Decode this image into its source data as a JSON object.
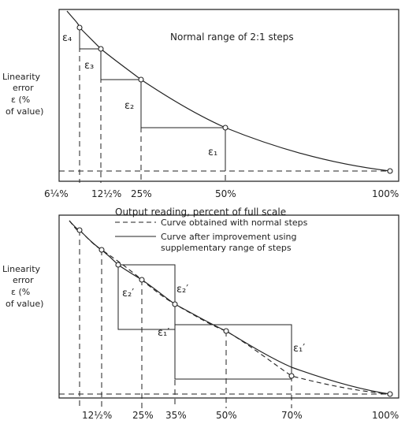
{
  "top": {
    "title": "Normal range of 2:1 steps",
    "ylabel_lines": [
      "Linearity",
      "error",
      "ε (%",
      "of value)"
    ],
    "xlabel": "Output reading, percent of full scale",
    "ticks": [
      "6¼%",
      "12½%",
      "25%",
      "50%",
      "100%"
    ],
    "eps_labels": [
      "ε₄",
      "ε₃",
      "ε₂",
      "ε₁"
    ]
  },
  "bottom": {
    "ylabel_lines": [
      "Linearity",
      "error",
      "ε (%",
      "of value)"
    ],
    "legend_dashed": "Curve obtained with normal steps",
    "legend_solid_lines": [
      "Curve after improvement using",
      "supplementary range of steps"
    ],
    "ticks": [
      "12½%",
      "25%",
      "35%",
      "50%",
      "70%",
      "100%"
    ],
    "eps_labels": [
      "ε₂′",
      "ε₂′",
      "ε₁′",
      "ε₁′"
    ]
  }
}
